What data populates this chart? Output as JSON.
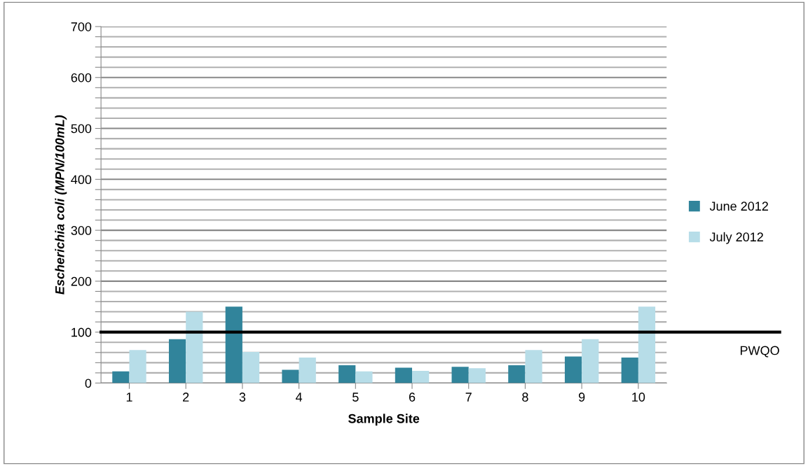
{
  "chart_data": {
    "type": "bar",
    "xlabel": "Sample Site",
    "ylabel": "Escherichia coli (MPN/100mL)",
    "categories": [
      "1",
      "2",
      "3",
      "4",
      "5",
      "6",
      "7",
      "8",
      "9",
      "10"
    ],
    "series": [
      {
        "name": "June 2012",
        "color": "#31849b",
        "values": [
          23,
          86,
          150,
          26,
          35,
          30,
          32,
          35,
          52,
          50
        ]
      },
      {
        "name": "July 2012",
        "color": "#b7dde8",
        "values": [
          65,
          140,
          61,
          50,
          23,
          24,
          29,
          65,
          86,
          150
        ]
      }
    ],
    "ylim": [
      0,
      700
    ],
    "yticks": [
      0,
      {
        "value": 20,
        "label": null
      },
      {
        "value": 40,
        "label": null
      },
      {
        "value": 60,
        "label": null
      },
      {
        "value": 80,
        "label": null
      },
      100,
      {
        "value": 120,
        "label": null
      },
      {
        "value": 140,
        "label": null
      },
      {
        "value": 160,
        "label": null
      },
      {
        "value": 180,
        "label": null
      },
      200,
      {
        "value": 220,
        "label": null
      },
      {
        "value": 240,
        "label": null
      },
      {
        "value": 260,
        "label": null
      },
      {
        "value": 280,
        "label": null
      },
      300,
      {
        "value": 320,
        "label": null
      },
      {
        "value": 340,
        "label": null
      },
      {
        "value": 360,
        "label": null
      },
      {
        "value": 380,
        "label": null
      },
      400,
      {
        "value": 420,
        "label": null
      },
      {
        "value": 440,
        "label": null
      },
      {
        "value": 460,
        "label": null
      },
      {
        "value": 480,
        "label": null
      },
      500,
      {
        "value": 520,
        "label": null
      },
      {
        "value": 540,
        "label": null
      },
      {
        "value": 560,
        "label": null
      },
      {
        "value": 580,
        "label": null
      },
      600,
      {
        "value": 620,
        "label": null
      },
      {
        "value": 640,
        "label": null
      },
      {
        "value": 660,
        "label": null
      },
      {
        "value": 680,
        "label": null
      },
      700
    ],
    "grid": "y",
    "legend": "right",
    "ref_lines": [
      {
        "axis": "y",
        "value": 100,
        "label": "PWQO",
        "color": "#000000",
        "line_style": "solid"
      }
    ]
  }
}
